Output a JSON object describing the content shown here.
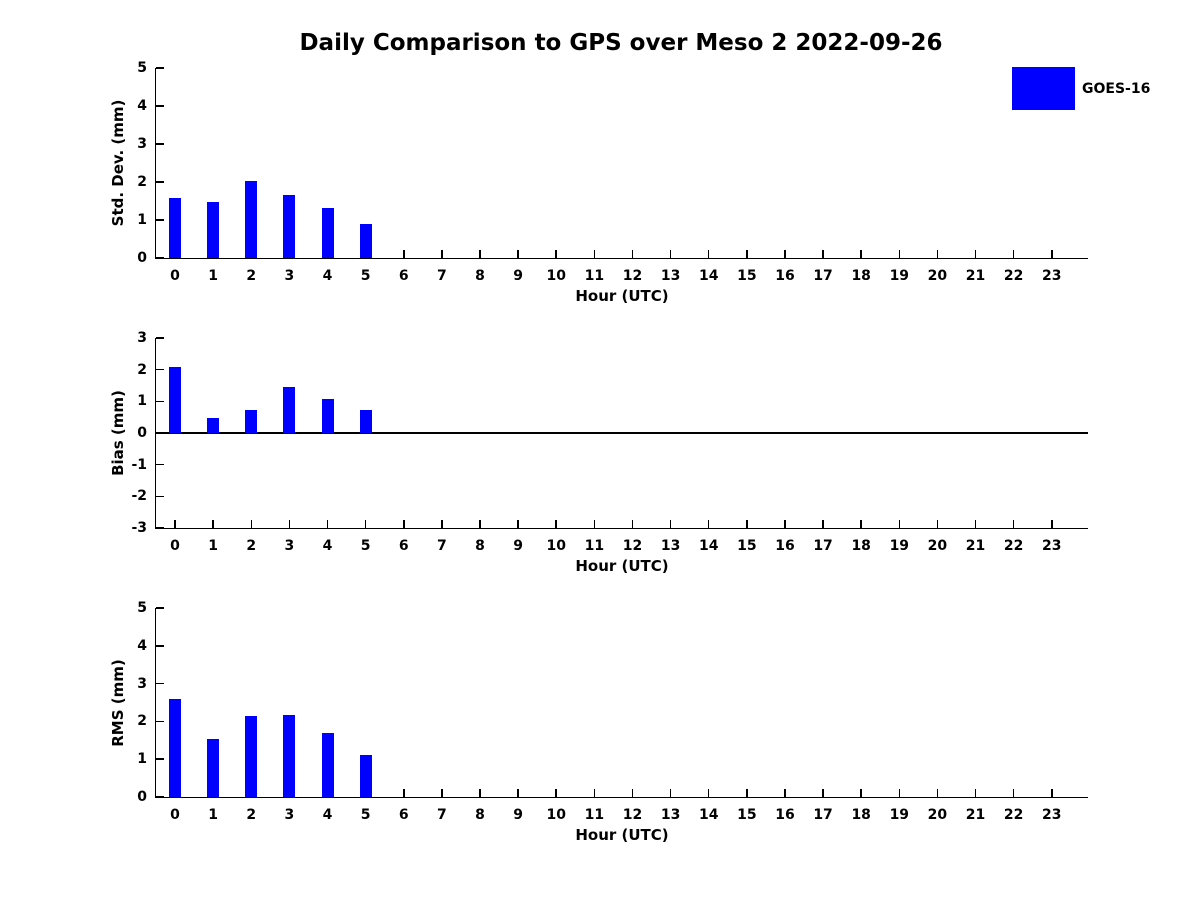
{
  "title": "Daily Comparison to GPS over Meso 2 2022-09-26",
  "legend": {
    "label": "GOES-16",
    "color": "#0000ff",
    "position": "upper-right-outside"
  },
  "chart_data": [
    {
      "type": "bar",
      "panel": "std-dev",
      "ylabel": "Std. Dev. (mm)",
      "xlabel": "Hour (UTC)",
      "xticks": [
        0,
        1,
        2,
        3,
        4,
        5,
        6,
        7,
        8,
        9,
        10,
        11,
        12,
        13,
        14,
        15,
        16,
        17,
        18,
        19,
        20,
        21,
        22,
        23
      ],
      "yticks": [
        0,
        1,
        2,
        3,
        4,
        5
      ],
      "xlim": [
        -0.5,
        23.95
      ],
      "ylim": [
        0,
        5
      ],
      "grid": false,
      "zero_line": false,
      "series": [
        {
          "name": "GOES-16",
          "color": "#0000ff",
          "x": [
            0,
            1,
            2,
            3,
            4,
            5
          ],
          "values": [
            1.57,
            1.47,
            2.02,
            1.67,
            1.32,
            0.9
          ]
        }
      ]
    },
    {
      "type": "bar",
      "panel": "bias",
      "ylabel": "Bias (mm)",
      "xlabel": "Hour (UTC)",
      "xticks": [
        0,
        1,
        2,
        3,
        4,
        5,
        6,
        7,
        8,
        9,
        10,
        11,
        12,
        13,
        14,
        15,
        16,
        17,
        18,
        19,
        20,
        21,
        22,
        23
      ],
      "yticks": [
        -3,
        -2,
        -1,
        0,
        1,
        2,
        3
      ],
      "xlim": [
        -0.5,
        23.95
      ],
      "ylim": [
        -3,
        3
      ],
      "grid": false,
      "zero_line": true,
      "series": [
        {
          "name": "GOES-16",
          "color": "#0000ff",
          "x": [
            0,
            1,
            2,
            3,
            4,
            5
          ],
          "values": [
            2.08,
            0.48,
            0.74,
            1.46,
            1.07,
            0.72
          ]
        }
      ]
    },
    {
      "type": "bar",
      "panel": "rms",
      "ylabel": "RMS (mm)",
      "xlabel": "Hour (UTC)",
      "xticks": [
        0,
        1,
        2,
        3,
        4,
        5,
        6,
        7,
        8,
        9,
        10,
        11,
        12,
        13,
        14,
        15,
        16,
        17,
        18,
        19,
        20,
        21,
        22,
        23
      ],
      "yticks": [
        0,
        1,
        2,
        3,
        4,
        5
      ],
      "xlim": [
        -0.5,
        23.95
      ],
      "ylim": [
        0,
        5
      ],
      "grid": false,
      "zero_line": false,
      "series": [
        {
          "name": "GOES-16",
          "color": "#0000ff",
          "x": [
            0,
            1,
            2,
            3,
            4,
            5
          ],
          "values": [
            2.6,
            1.54,
            2.14,
            2.18,
            1.7,
            1.11
          ]
        }
      ]
    }
  ]
}
